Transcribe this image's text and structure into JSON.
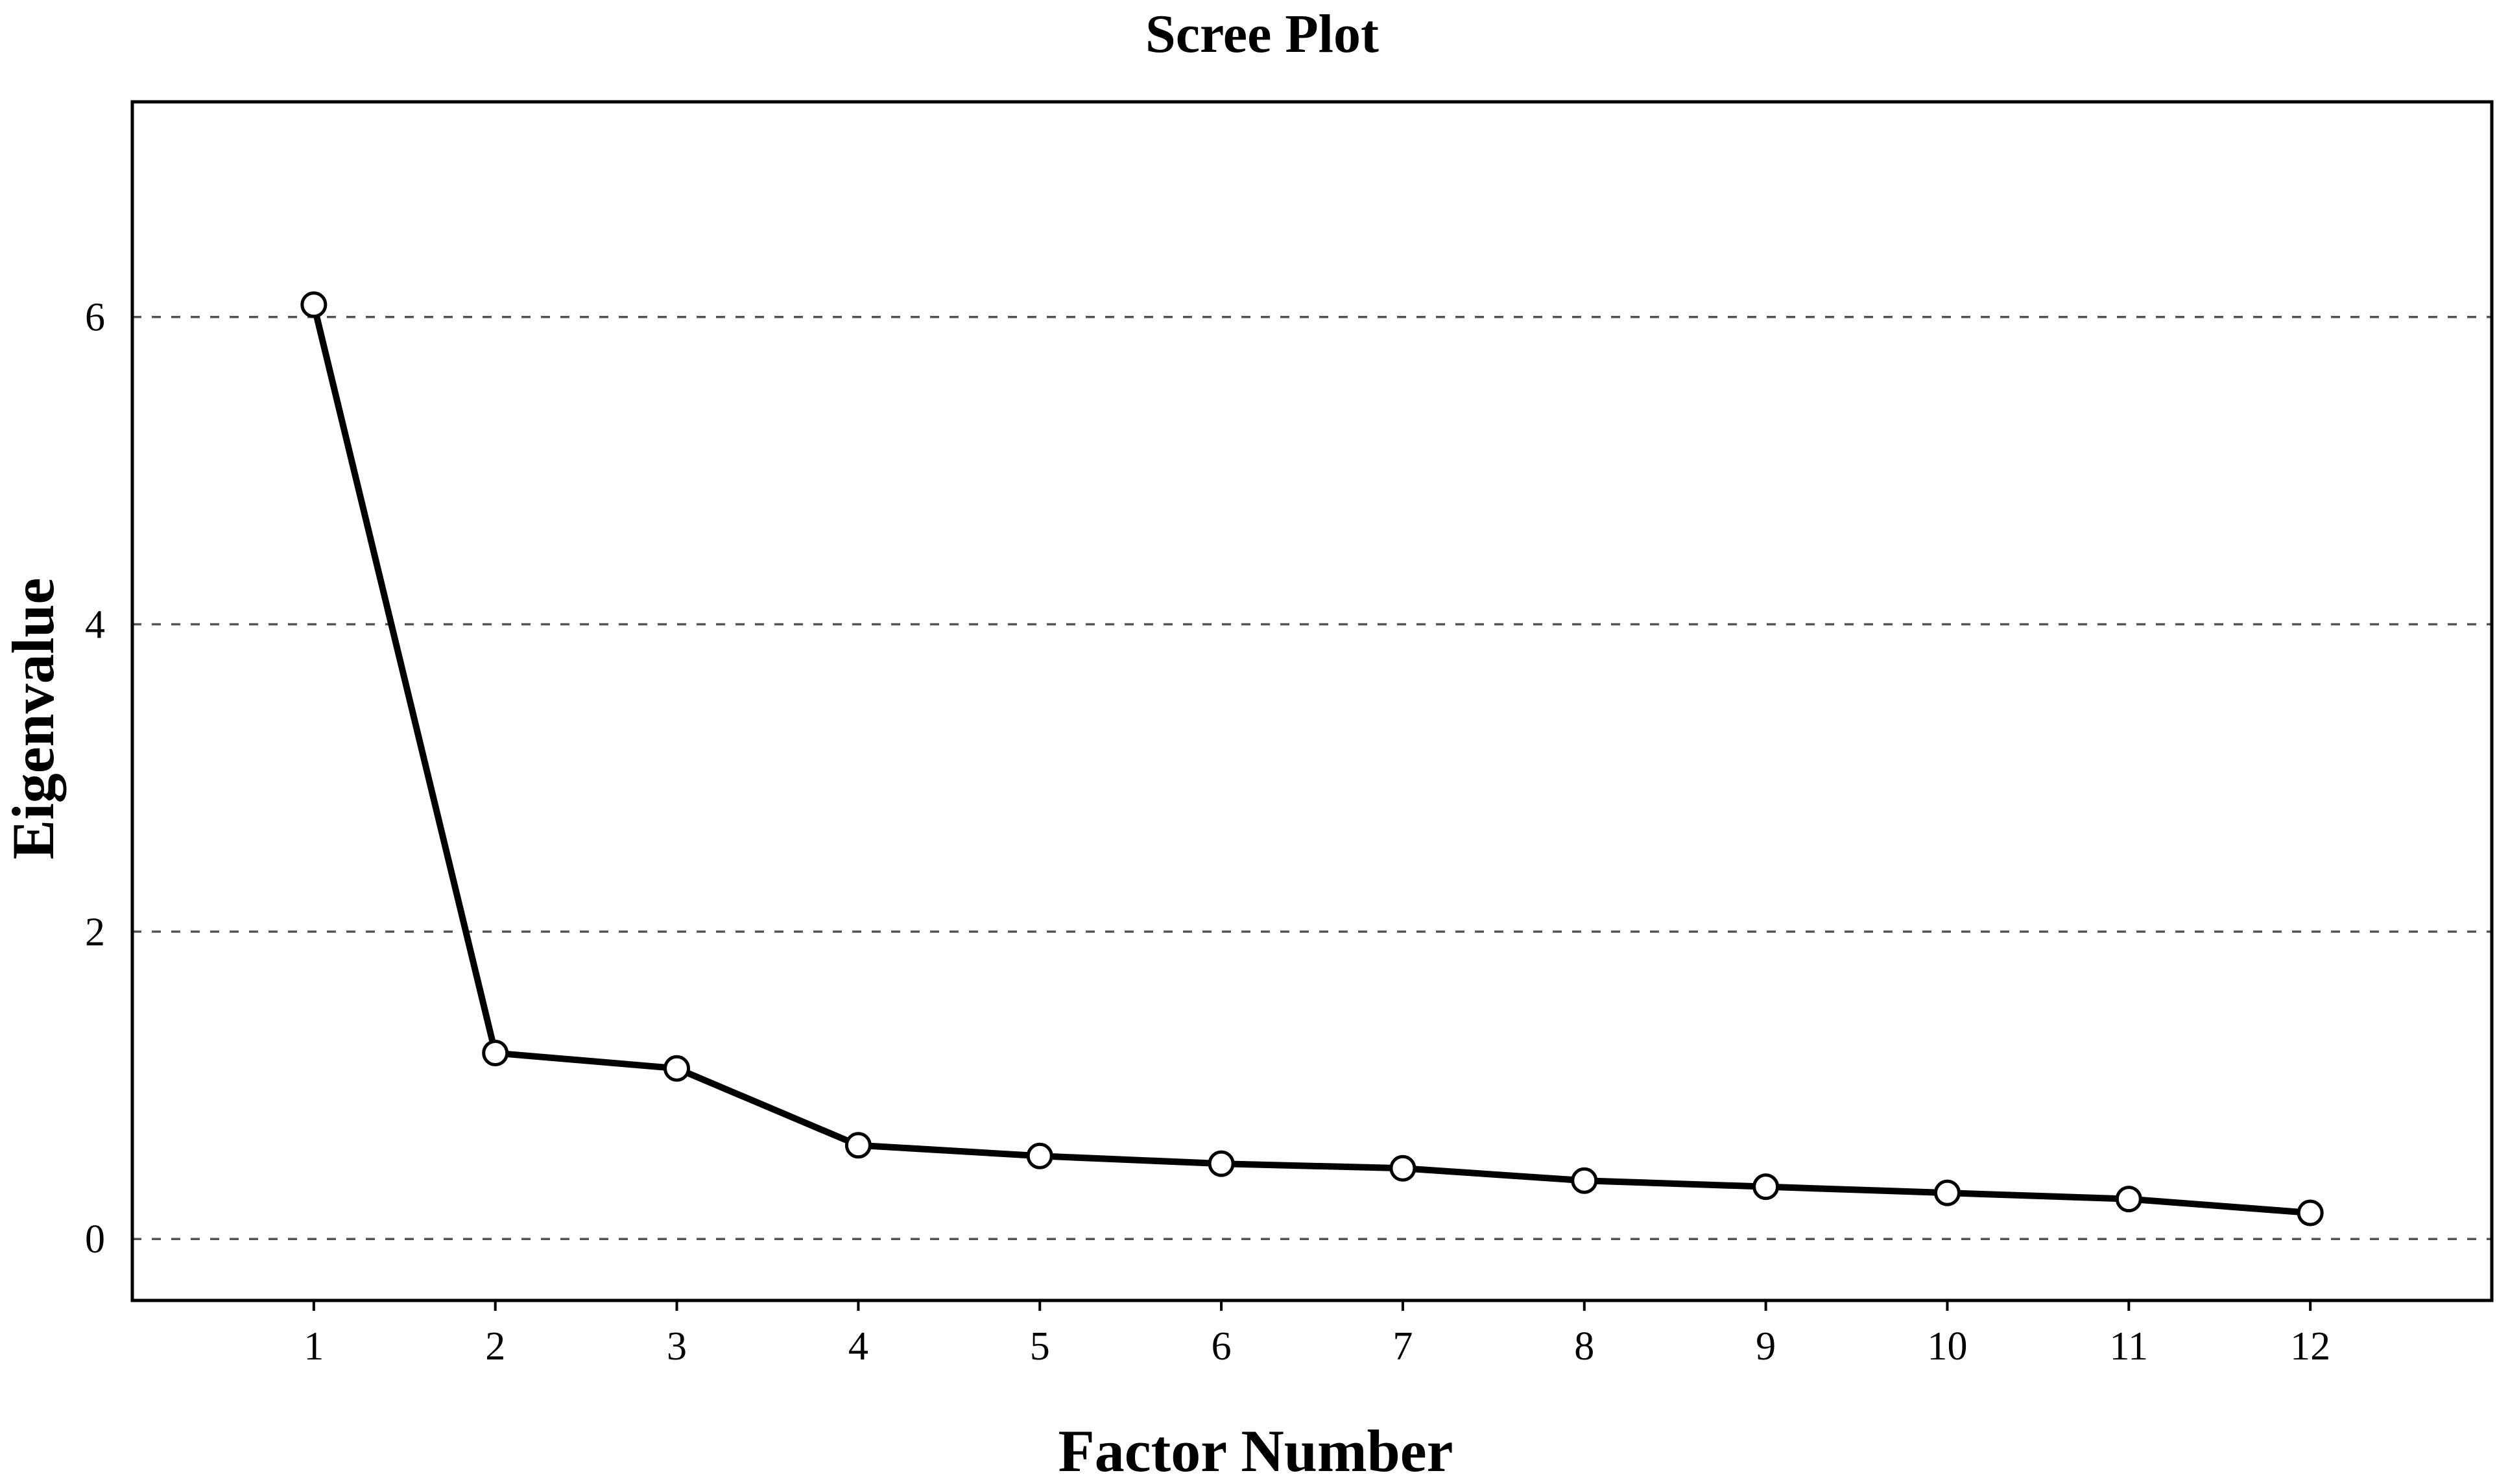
{
  "chart_data": {
    "type": "line",
    "title": "Scree Plot",
    "xlabel": "Factor Number",
    "ylabel": "Eigenvalue",
    "x": [
      1,
      2,
      3,
      4,
      5,
      6,
      7,
      8,
      9,
      10,
      11,
      12
    ],
    "x_tick_labels": [
      "1",
      "2",
      "3",
      "4",
      "5",
      "6",
      "7",
      "8",
      "9",
      "10",
      "11",
      "12"
    ],
    "y_ticks": [
      0,
      2,
      4,
      6
    ],
    "y_tick_labels": [
      "0",
      "2",
      "4",
      "6"
    ],
    "xlim": [
      0,
      13
    ],
    "ylim": [
      -0.4,
      7.4
    ],
    "grid": "horizontal-dashed",
    "series": [
      {
        "values": [
          6.08,
          1.21,
          1.11,
          0.61,
          0.54,
          0.49,
          0.46,
          0.38,
          0.34,
          0.3,
          0.26,
          0.17
        ]
      }
    ]
  }
}
